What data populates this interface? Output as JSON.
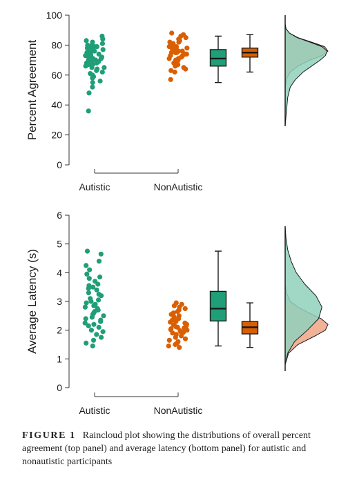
{
  "colors": {
    "autistic": "#1f9e77",
    "nonautistic": "#d95f02",
    "autistic_fill": "#8fd0bb",
    "nonautistic_fill": "#f0a585",
    "overlap_fill": "#a38f5a",
    "axis": "#333333"
  },
  "caption": {
    "label": "FIGURE 1",
    "text": "Raincloud plot showing the distributions of overall percent agreement (top panel) and average latency (bottom panel) for autistic and nonautistic participants"
  },
  "chart_data": [
    {
      "type": "raincloud",
      "ylabel": "Percent Agreement",
      "ylim": [
        0,
        100
      ],
      "yticks": [
        "0",
        "20",
        "40",
        "60",
        "80",
        "100"
      ],
      "categories": [
        "Autistic",
        "NonAutistic"
      ],
      "series": [
        {
          "points": [
            86,
            84,
            83,
            82,
            81,
            80,
            80,
            79,
            79,
            78,
            78,
            77,
            77,
            76,
            76,
            75,
            75,
            74,
            74,
            73,
            73,
            72,
            72,
            71,
            71,
            70,
            70,
            69,
            69,
            68,
            68,
            67,
            67,
            66,
            65,
            65,
            64,
            63,
            62,
            61,
            60,
            59,
            58,
            56,
            55,
            52,
            48,
            36
          ],
          "box": {
            "min": 55,
            "q1": 66,
            "median": 71,
            "q3": 77,
            "max": 86
          },
          "density": [
            [
              26,
              0.0
            ],
            [
              36,
              0.03
            ],
            [
              45,
              0.06
            ],
            [
              52,
              0.12
            ],
            [
              57,
              0.24
            ],
            [
              62,
              0.42
            ],
            [
              66,
              0.62
            ],
            [
              70,
              0.82
            ],
            [
              73,
              0.94
            ],
            [
              76,
              0.98
            ],
            [
              79,
              0.86
            ],
            [
              82,
              0.58
            ],
            [
              85,
              0.28
            ],
            [
              88,
              0.1
            ],
            [
              91,
              0.02
            ],
            [
              94,
              0.0
            ]
          ]
        },
        {
          "points": [
            88,
            87,
            86,
            85,
            84,
            83,
            82,
            82,
            81,
            80,
            80,
            79,
            79,
            78,
            78,
            77,
            77,
            76,
            76,
            75,
            75,
            75,
            74,
            74,
            73,
            73,
            72,
            72,
            71,
            71,
            70,
            70,
            69,
            68,
            67,
            66,
            65,
            64,
            63,
            62,
            57
          ],
          "box": {
            "min": 62,
            "q1": 72,
            "median": 75,
            "q3": 78,
            "max": 87
          },
          "density": [
            [
              52,
              0.0
            ],
            [
              58,
              0.04
            ],
            [
              62,
              0.12
            ],
            [
              66,
              0.3
            ],
            [
              70,
              0.58
            ],
            [
              73,
              0.86
            ],
            [
              76,
              1.0
            ],
            [
              79,
              0.92
            ],
            [
              82,
              0.62
            ],
            [
              85,
              0.3
            ],
            [
              88,
              0.1
            ],
            [
              91,
              0.02
            ],
            [
              94,
              0.0
            ]
          ]
        }
      ]
    },
    {
      "type": "raincloud",
      "ylabel": "Average Latency (s)",
      "ylim": [
        0,
        6
      ],
      "yticks": [
        "0",
        "1",
        "2",
        "3",
        "4",
        "5",
        "6"
      ],
      "categories": [
        "Autistic",
        "NonAutistic"
      ],
      "series": [
        {
          "points": [
            4.75,
            4.65,
            4.4,
            4.25,
            4.1,
            3.95,
            3.85,
            3.8,
            3.7,
            3.6,
            3.55,
            3.5,
            3.45,
            3.4,
            3.3,
            3.25,
            3.2,
            3.1,
            3.05,
            3.0,
            2.95,
            2.9,
            2.85,
            2.8,
            2.75,
            2.7,
            2.65,
            2.6,
            2.55,
            2.5,
            2.45,
            2.4,
            2.35,
            2.3,
            2.25,
            2.2,
            2.15,
            2.1,
            2.0,
            1.95,
            1.85,
            1.75,
            1.65,
            1.55,
            1.45
          ],
          "box": {
            "min": 1.45,
            "q1": 2.32,
            "median": 2.75,
            "q3": 3.35,
            "max": 4.75
          },
          "density": [
            [
              0.8,
              0.0
            ],
            [
              1.2,
              0.06
            ],
            [
              1.6,
              0.22
            ],
            [
              2.0,
              0.52
            ],
            [
              2.4,
              0.78
            ],
            [
              2.8,
              0.86
            ],
            [
              3.2,
              0.72
            ],
            [
              3.6,
              0.46
            ],
            [
              4.0,
              0.26
            ],
            [
              4.4,
              0.14
            ],
            [
              4.8,
              0.06
            ],
            [
              5.2,
              0.02
            ],
            [
              5.6,
              0.0
            ]
          ]
        },
        {
          "points": [
            2.95,
            2.9,
            2.85,
            2.8,
            2.75,
            2.7,
            2.65,
            2.6,
            2.55,
            2.5,
            2.45,
            2.4,
            2.35,
            2.3,
            2.28,
            2.25,
            2.2,
            2.18,
            2.15,
            2.12,
            2.1,
            2.08,
            2.05,
            2.02,
            2.0,
            1.98,
            1.95,
            1.92,
            1.9,
            1.85,
            1.8,
            1.75,
            1.7,
            1.65,
            1.6,
            1.55,
            1.5,
            1.45,
            1.4
          ],
          "box": {
            "min": 1.4,
            "q1": 1.87,
            "median": 2.1,
            "q3": 2.3,
            "max": 2.95
          },
          "density": [
            [
              0.8,
              0.0
            ],
            [
              1.2,
              0.08
            ],
            [
              1.5,
              0.3
            ],
            [
              1.8,
              0.7
            ],
            [
              2.0,
              0.94
            ],
            [
              2.2,
              1.0
            ],
            [
              2.4,
              0.84
            ],
            [
              2.6,
              0.56
            ],
            [
              2.8,
              0.3
            ],
            [
              3.0,
              0.12
            ],
            [
              3.3,
              0.03
            ],
            [
              3.6,
              0.0
            ]
          ]
        }
      ]
    }
  ]
}
